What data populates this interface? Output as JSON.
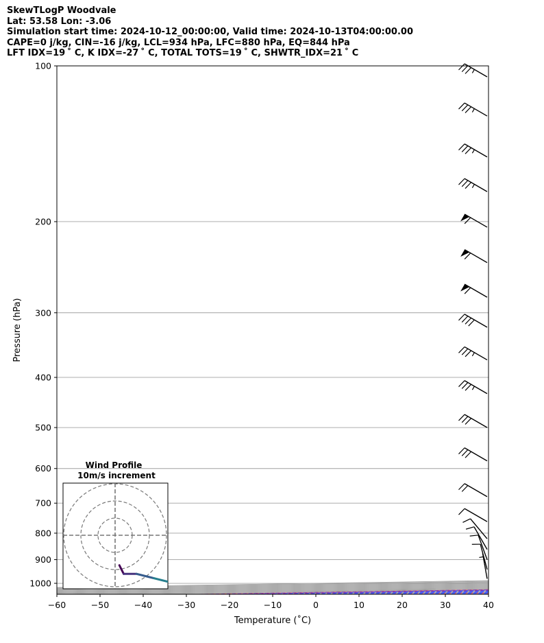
{
  "header": {
    "line1": "SkewTLogP Woodvale",
    "line2": "Lat: 53.58   Lon: -3.06",
    "line3": "Simulation start time: 2024-10-12_00:00:00, Valid time: 2024-10-13T04:00:00.00",
    "line4": "CAPE=0 j/kg, CIN=-16 j/kg, LCL=934 hPa, LFC=880 hPa, EQ=844 hPa",
    "line5": "LFT IDX=19 ˚ C, K IDX=-27 ˚ C, TOTAL TOTS=19 ˚ C, SHWTR_IDX=21 ˚ C"
  },
  "colors": {
    "temperature": "#e00000",
    "dewpoint": "#008000",
    "parcel": "#000000",
    "cape_fill": "#7aa9cf",
    "dry_adiabat": "#ff4d4d",
    "moist_adiabat": "#3d5cff",
    "isotherm": "#a0a0a0",
    "mixing_ratio": "#7a2fb0"
  },
  "inset": {
    "title_line1": "Wind Profile",
    "title_line2": "10m/s increment"
  },
  "chart_data": {
    "type": "line",
    "xlabel": "Temperature (˚C)",
    "ylabel": "Pressure (hPa)",
    "xlim": [
      -60,
      40
    ],
    "ylim": [
      1050,
      100
    ],
    "y_scale": "log",
    "x_ticks": [
      "−60",
      "−50",
      "−40",
      "−30",
      "−20",
      "−10",
      "0",
      "10",
      "20",
      "30",
      "40"
    ],
    "y_ticks": [
      "100",
      "200",
      "300",
      "400",
      "500",
      "600",
      "700",
      "800",
      "900",
      "1000"
    ],
    "y_tick_values": [
      100,
      200,
      300,
      400,
      500,
      600,
      700,
      800,
      900,
      1000
    ],
    "grid": true,
    "series": [
      {
        "key": "temperature",
        "points": [
          [
            1005,
            8.6
          ],
          [
            990,
            6.5
          ],
          [
            960,
            4.5
          ],
          [
            930,
            2.9
          ],
          [
            900,
            1.9
          ],
          [
            870,
            1.2
          ],
          [
            840,
            0.6
          ],
          [
            800,
            1.8
          ],
          [
            760,
            2.5
          ],
          [
            700,
            4.0
          ],
          [
            650,
            6.3
          ],
          [
            600,
            6.6
          ],
          [
            550,
            6.5
          ],
          [
            500,
            6.4
          ],
          [
            470,
            6.8
          ],
          [
            440,
            7.1
          ],
          [
            400,
            6.8
          ],
          [
            350,
            5.9
          ],
          [
            300,
            4.2
          ],
          [
            270,
            1.0
          ],
          [
            240,
            -3.6
          ],
          [
            210,
            -8.9
          ],
          [
            200,
            -10.4
          ],
          [
            185,
            -9.5
          ],
          [
            165,
            -6.8
          ],
          [
            140,
            -5.5
          ],
          [
            120,
            -4.8
          ],
          [
            110,
            -3.8
          ],
          [
            100,
            -1.4
          ]
        ]
      },
      {
        "key": "dewpoint",
        "points": [
          [
            1000,
            3.8
          ],
          [
            990,
            3.8
          ],
          [
            970,
            4.0
          ],
          [
            940,
            1.2
          ],
          [
            900,
            -1.2
          ],
          [
            850,
            -4.9
          ],
          [
            800,
            -24.0
          ],
          [
            740,
            -36.1
          ],
          [
            700,
            -44.3
          ],
          [
            650,
            -48.3
          ],
          [
            600,
            -33.0
          ],
          [
            560,
            -20.5
          ],
          [
            520,
            -13.5
          ],
          [
            480,
            -14.8
          ],
          [
            440,
            -17.4
          ],
          [
            400,
            -20.3
          ],
          [
            370,
            -22.7
          ],
          [
            330,
            -27.0
          ],
          [
            300,
            -32.5
          ],
          [
            270,
            -34.7
          ],
          [
            250,
            -41.6
          ],
          [
            230,
            -45.1
          ],
          [
            210,
            -48.5
          ],
          [
            190,
            -53.5
          ],
          [
            170,
            -59.2
          ],
          [
            155,
            -63.1
          ],
          [
            140,
            -63.6
          ],
          [
            125,
            -64.5
          ],
          [
            115,
            -65.3
          ],
          [
            100,
            -67.5
          ]
        ]
      },
      {
        "key": "parcel",
        "points": [
          [
            1000,
            8.2
          ],
          [
            975,
            6.1
          ],
          [
            950,
            4.0
          ],
          [
            934,
            2.6
          ],
          [
            900,
            -0.4
          ],
          [
            850,
            -4.1
          ],
          [
            800,
            -7.5
          ],
          [
            750,
            -10.9
          ],
          [
            700,
            -14.6
          ],
          [
            650,
            -18.6
          ],
          [
            600,
            -23.0
          ],
          [
            550,
            -27.9
          ],
          [
            500,
            -33.6
          ],
          [
            450,
            -40.0
          ],
          [
            400,
            -47.2
          ],
          [
            350,
            -55.3
          ],
          [
            300,
            -64.3
          ],
          [
            250,
            -75.1
          ],
          [
            200,
            -88.1
          ],
          [
            150,
            -104.3
          ],
          [
            100,
            -126.5
          ]
        ]
      }
    ],
    "barbs": [
      {
        "p": 105,
        "speed_kt": 35,
        "dir_deg": 300
      },
      {
        "p": 125,
        "speed_kt": 35,
        "dir_deg": 300
      },
      {
        "p": 150,
        "speed_kt": 35,
        "dir_deg": 300
      },
      {
        "p": 175,
        "speed_kt": 35,
        "dir_deg": 300
      },
      {
        "p": 205,
        "speed_kt": 60,
        "dir_deg": 300
      },
      {
        "p": 240,
        "speed_kt": 60,
        "dir_deg": 300
      },
      {
        "p": 280,
        "speed_kt": 60,
        "dir_deg": 300
      },
      {
        "p": 320,
        "speed_kt": 40,
        "dir_deg": 300
      },
      {
        "p": 370,
        "speed_kt": 35,
        "dir_deg": 300
      },
      {
        "p": 430,
        "speed_kt": 35,
        "dir_deg": 300
      },
      {
        "p": 500,
        "speed_kt": 30,
        "dir_deg": 300
      },
      {
        "p": 580,
        "speed_kt": 30,
        "dir_deg": 300
      },
      {
        "p": 680,
        "speed_kt": 20,
        "dir_deg": 300
      },
      {
        "p": 760,
        "speed_kt": 10,
        "dir_deg": 300
      },
      {
        "p": 820,
        "speed_kt": 10,
        "dir_deg": 320
      },
      {
        "p": 860,
        "speed_kt": 10,
        "dir_deg": 330
      },
      {
        "p": 900,
        "speed_kt": 10,
        "dir_deg": 340
      },
      {
        "p": 940,
        "speed_kt": 10,
        "dir_deg": 345
      },
      {
        "p": 980,
        "speed_kt": 5,
        "dir_deg": 350
      }
    ],
    "hodograph": {
      "ring_increment_ms": 10,
      "rings": 3,
      "points": [
        [
          1,
          -7
        ],
        [
          2,
          -9
        ],
        [
          5,
          -9
        ],
        [
          9,
          -10
        ],
        [
          13,
          -11
        ],
        [
          17,
          -11.5
        ],
        [
          21,
          -12
        ],
        [
          24,
          -11.5
        ],
        [
          27,
          -11
        ],
        [
          28,
          -13
        ]
      ]
    }
  }
}
